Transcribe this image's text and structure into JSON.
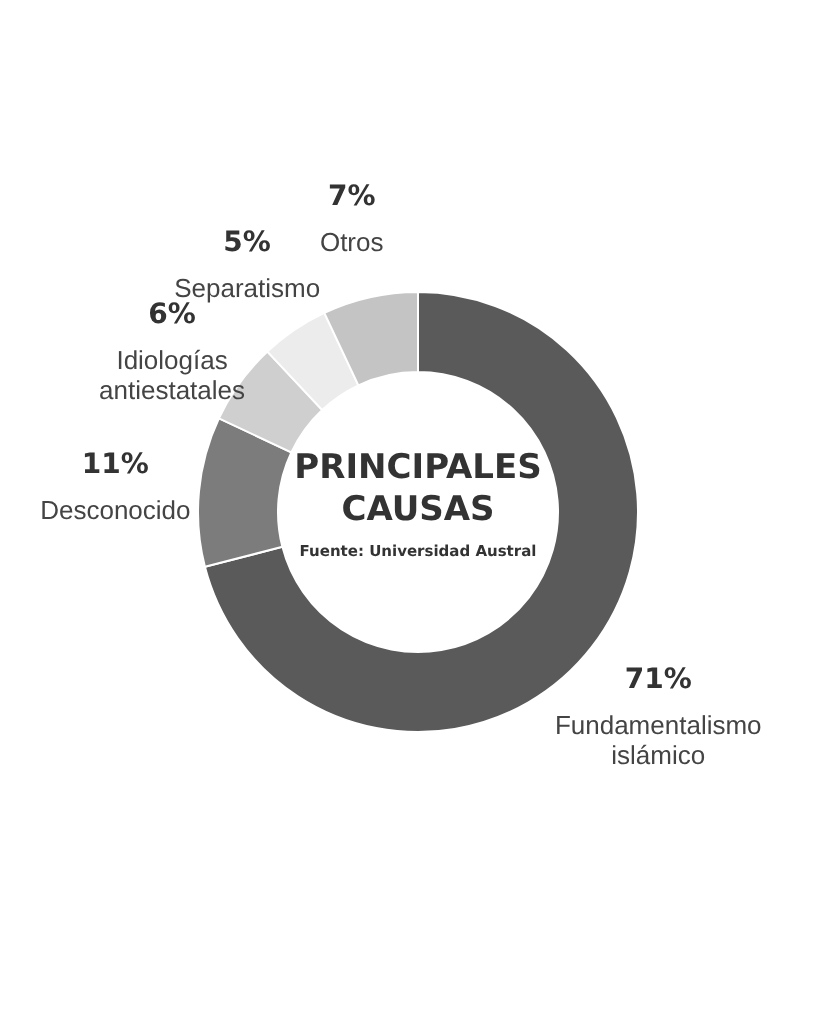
{
  "chart_data": {
    "type": "donut",
    "title": "PRINCIPALES CAUSAS",
    "annotations": [
      "Fuente: Universidad Austral"
    ],
    "categories": [
      "Fundamentalismo islámico",
      "Desconocido",
      "Idiologías antiestatales",
      "Separatismo",
      "Otros"
    ],
    "values": [
      71,
      11,
      6,
      5,
      7
    ],
    "value_labels": [
      "71%",
      "11%",
      "6%",
      "5%",
      "7%"
    ],
    "colors": [
      "#5a5a5a",
      "#7c7c7c",
      "#cfcfcf",
      "#ececec",
      "#c4c4c4"
    ]
  }
}
